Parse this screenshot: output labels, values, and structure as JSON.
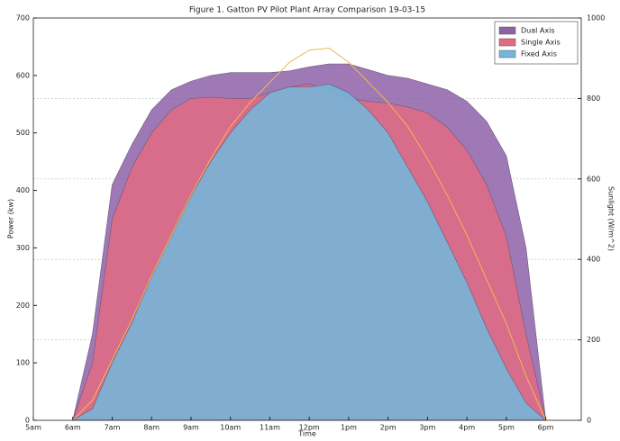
{
  "chart_data": {
    "type": "area",
    "title": "Figure 1. Gatton PV Pilot Plant Array Comparison 19-03-15",
    "x_label": "Time",
    "y_label": "Power (kw)",
    "y2_label": "Sunlight (W/m^2)",
    "x": [
      6,
      6.5,
      7,
      7.5,
      8,
      8.5,
      9,
      9.5,
      10,
      10.5,
      11,
      11.5,
      12,
      12.5,
      13,
      13.5,
      14,
      14.5,
      15,
      15.5,
      16,
      16.5,
      17,
      17.5,
      18
    ],
    "series": [
      {
        "name": "Dual Axis",
        "color": "#8e62a8",
        "values": [
          0,
          150,
          410,
          480,
          540,
          575,
          590,
          600,
          605,
          605,
          605,
          608,
          615,
          620,
          620,
          610,
          600,
          595,
          585,
          575,
          555,
          520,
          460,
          300,
          0
        ]
      },
      {
        "name": "Single Axis",
        "color": "#e26a84",
        "values": [
          0,
          100,
          350,
          440,
          500,
          540,
          560,
          562,
          560,
          560,
          570,
          580,
          585,
          575,
          560,
          555,
          552,
          545,
          535,
          510,
          470,
          410,
          320,
          150,
          0
        ]
      },
      {
        "name": "Fixed Axis",
        "color": "#72b8dc",
        "values": [
          0,
          20,
          100,
          170,
          250,
          320,
          390,
          450,
          500,
          540,
          570,
          580,
          580,
          585,
          570,
          540,
          500,
          440,
          380,
          310,
          240,
          160,
          90,
          30,
          0
        ]
      },
      {
        "color": "#f0b850",
        "axis": "y2",
        "values": [
          0,
          50,
          150,
          250,
          360,
          460,
          560,
          650,
          730,
          790,
          840,
          890,
          920,
          925,
          890,
          840,
          790,
          730,
          650,
          560,
          460,
          350,
          240,
          110,
          0
        ]
      }
    ],
    "xlim": [
      5,
      18.9
    ],
    "xticks": [
      {
        "value": 5,
        "label": "5am"
      },
      {
        "value": 6,
        "label": "6am"
      },
      {
        "value": 7,
        "label": "7am"
      },
      {
        "value": 8,
        "label": "8am"
      },
      {
        "value": 9,
        "label": "9am"
      },
      {
        "value": 10,
        "label": "10am"
      },
      {
        "value": 11,
        "label": "11am"
      },
      {
        "value": 12,
        "label": "12pm"
      },
      {
        "value": 13,
        "label": "1pm"
      },
      {
        "value": 14,
        "label": "2pm"
      },
      {
        "value": 15,
        "label": "3pm"
      },
      {
        "value": 16,
        "label": "4pm"
      },
      {
        "value": 17,
        "label": "5pm"
      },
      {
        "value": 18,
        "label": "6pm"
      }
    ],
    "ylim": [
      0,
      700
    ],
    "yticks": [
      0,
      100,
      200,
      300,
      400,
      500,
      600,
      700
    ],
    "y2lim": [
      0,
      1000
    ],
    "y2ticks": [
      0,
      200,
      400,
      600,
      800,
      1000
    ],
    "grid": true,
    "legend": "upper right"
  }
}
